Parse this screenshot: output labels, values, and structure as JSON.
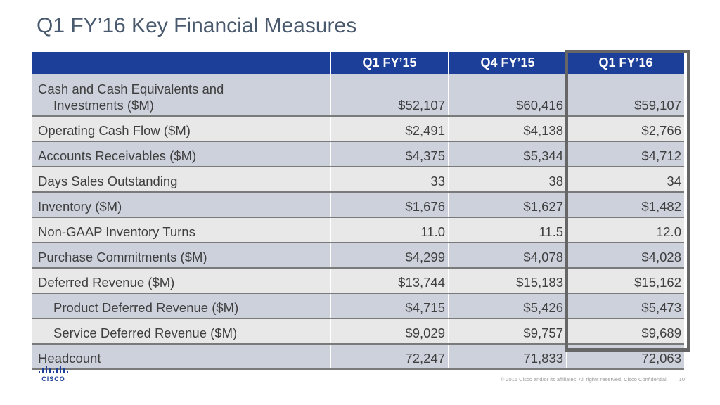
{
  "slide": {
    "title": "Q1 FY’16 Key Financial Measures"
  },
  "table": {
    "columns": [
      "",
      "Q1 FY’15",
      "Q4 FY’15",
      "Q1 FY’16"
    ],
    "rows": [
      {
        "label_line1": "Cash and Cash Equivalents and",
        "label_line2": "Investments ($M)",
        "values": [
          "$52,107",
          "$60,416",
          "$59,107"
        ]
      },
      {
        "label": "Operating Cash Flow ($M)",
        "values": [
          "$2,491",
          "$4,138",
          "$2,766"
        ]
      },
      {
        "label": "Accounts Receivables ($M)",
        "values": [
          "$4,375",
          "$5,344",
          "$4,712"
        ]
      },
      {
        "label": "Days Sales Outstanding",
        "values": [
          "33",
          "38",
          "34"
        ]
      },
      {
        "label": "Inventory ($M)",
        "values": [
          "$1,676",
          "$1,627",
          "$1,482"
        ]
      },
      {
        "label": "Non-GAAP Inventory Turns",
        "values": [
          "11.0",
          "11.5",
          "12.0"
        ]
      },
      {
        "label": "Purchase Commitments ($M)",
        "values": [
          "$4,299",
          "$4,078",
          "$4,028"
        ]
      },
      {
        "label": "Deferred Revenue ($M)",
        "values": [
          "$13,744",
          "$15,183",
          "$15,162"
        ]
      },
      {
        "label": "Product Deferred Revenue ($M)",
        "values": [
          "$4,715",
          "$5,426",
          "$5,473"
        ]
      },
      {
        "label": "Service Deferred Revenue ($M)",
        "values": [
          "$9,029",
          "$9,757",
          "$9,689"
        ]
      },
      {
        "label": "Headcount",
        "values": [
          "72,247",
          "71,833",
          "72,063"
        ]
      }
    ]
  },
  "footer": {
    "logo_text": "CISCO",
    "copyright": "© 2015  Cisco and/or its affiliates. All rights reserved.   Cisco Confidential",
    "page_number": "10"
  },
  "colors": {
    "header_blue": "#1c3f99",
    "row_dark": "#cdd1dc",
    "row_light": "#e8e8e8",
    "highlight_border": "#666666",
    "title_text": "#4a5a6e"
  }
}
